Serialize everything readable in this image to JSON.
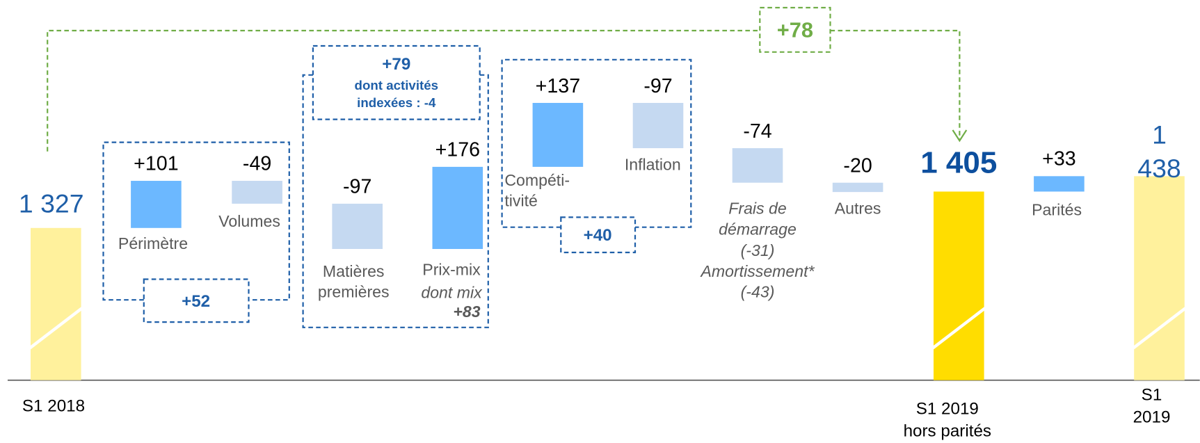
{
  "chart_data": {
    "type": "waterfall",
    "categories": [
      "S1 2018",
      "Périmètre",
      "Volumes",
      "Matières\npremières",
      "Prix-mix",
      "Compéti-\ntivité",
      "Inflation",
      "Frais de\ndémarrage\n(-31)\nAmortissement*\n(-43)",
      "Autres",
      "S1 2019\nhors parités",
      "Parités",
      "S1 2019"
    ],
    "measure": [
      "absolute",
      "relative",
      "relative",
      "relative",
      "relative",
      "relative",
      "relative",
      "relative",
      "relative",
      "absolute",
      "relative",
      "absolute"
    ],
    "values": [
      1327,
      101,
      -49,
      -97,
      176,
      137,
      -97,
      -74,
      -20,
      1405,
      33,
      1438
    ],
    "value_labels": [
      "1 327",
      "+101",
      "-49",
      "-97",
      "+176",
      "+137",
      "-97",
      "-74",
      "-20",
      "1 405",
      "+33",
      "1 438"
    ],
    "colors": [
      "#fff19c",
      "#6cb8ff",
      "#c5d9f1",
      "#c5d9f1",
      "#6cb8ff",
      "#6cb8ff",
      "#c5d9f1",
      "#c5d9f1",
      "#c5d9f1",
      "#ffdd00",
      "#6cb8ff",
      "#fff19c"
    ],
    "annotations": {
      "mix_label": "dont mix",
      "mix_value": "+83"
    },
    "groups": [
      {
        "label": "+52"
      },
      {
        "label": "+79",
        "note": "dont activités\nindexées : -4"
      },
      {
        "label": "+40"
      },
      {
        "label": "+78"
      }
    ]
  }
}
